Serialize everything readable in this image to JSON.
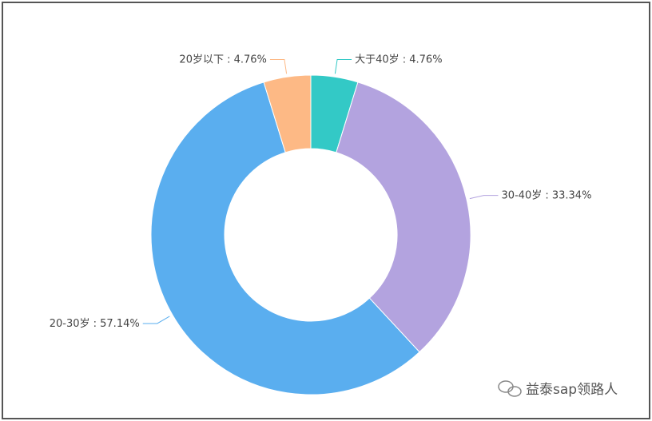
{
  "chart_data": {
    "type": "donut",
    "categories": [
      "大于40岁",
      "30-40岁",
      "20-30岁",
      "20岁以下"
    ],
    "values": [
      4.76,
      33.34,
      57.14,
      4.76
    ],
    "value_labels": [
      " : 4.76%",
      " : 33.34%",
      " : 57.14%",
      " : 4.76%"
    ],
    "colors": [
      "#33c9c6",
      "#b3a3df",
      "#5aaeef",
      "#fdb985"
    ],
    "watermark": "益泰sap领路人"
  }
}
